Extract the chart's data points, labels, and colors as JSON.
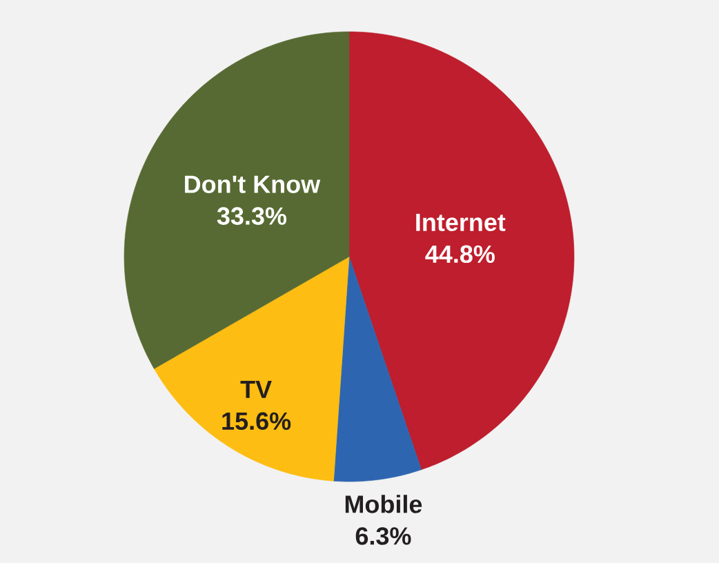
{
  "chart_data": {
    "type": "pie",
    "categories": [
      "Internet",
      "Mobile",
      "TV",
      "Don't Know"
    ],
    "values": [
      44.8,
      6.3,
      15.6,
      33.3
    ],
    "colors": [
      "#be1e2d",
      "#2e65b0",
      "#fdbd12",
      "#576a33"
    ],
    "value_labels": [
      "44.8%",
      "6.3%",
      "15.6%",
      "33.3%"
    ]
  }
}
